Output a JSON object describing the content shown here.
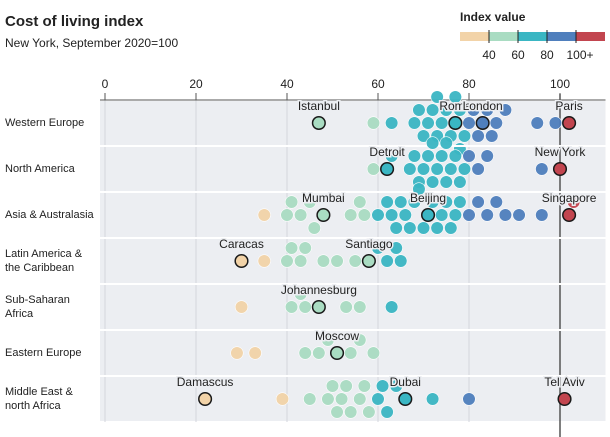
{
  "chart_data": {
    "type": "beeswarm",
    "title": "Cost of living index",
    "subtitle": "New York, September 2020=100",
    "xlim": [
      0,
      110
    ],
    "xticks": [
      0,
      20,
      40,
      60,
      80,
      100
    ],
    "reference_line": 100,
    "legend": {
      "title": "Index value",
      "colors": [
        "#f2d3a8",
        "#a9dcc2",
        "#3ab6c3",
        "#4f7fbd",
        "#c2454f"
      ],
      "ticks": [
        40,
        60,
        80,
        {
          "value": 100,
          "label": "100+"
        }
      ]
    },
    "series": [
      {
        "name": "Western Europe",
        "values": [
          59,
          63,
          68,
          69,
          70,
          71,
          72,
          73,
          73,
          74,
          75,
          76,
          77,
          78,
          78,
          79,
          80,
          81,
          82,
          84,
          85,
          86,
          88,
          95,
          99
        ],
        "highlighted": [
          {
            "city": "Istanbul",
            "value": 47
          },
          {
            "city": "Rome",
            "value": 77
          },
          {
            "city": "London",
            "value": 83
          },
          {
            "city": "Paris",
            "value": 102
          }
        ]
      },
      {
        "name": "North America",
        "values": [
          59,
          63,
          67,
          68,
          69,
          70,
          71,
          72,
          72,
          73,
          74,
          75,
          75,
          76,
          77,
          78,
          79,
          80,
          82,
          84,
          96
        ],
        "highlighted": [
          {
            "city": "Detroit",
            "value": 62
          },
          {
            "city": "New York",
            "value": 100
          }
        ]
      },
      {
        "name": "Asia & Australasia",
        "values": [
          35,
          40,
          41,
          43,
          45,
          46,
          54,
          56,
          57,
          60,
          62,
          63,
          64,
          65,
          66,
          67,
          68,
          69,
          70,
          72,
          73,
          74,
          75,
          76,
          77,
          78,
          80,
          82,
          84,
          86,
          88,
          91,
          96,
          103
        ],
        "highlighted": [
          {
            "city": "Mumbai",
            "value": 48
          },
          {
            "city": "Beijing",
            "value": 71
          },
          {
            "city": "Singapore",
            "value": 102
          }
        ]
      },
      {
        "name": "Latin America &\nthe Caribbean",
        "values": [
          35,
          40,
          41,
          43,
          44,
          48,
          51,
          55,
          60,
          62,
          64,
          65
        ],
        "highlighted": [
          {
            "city": "Caracas",
            "value": 30
          },
          {
            "city": "Santiago",
            "value": 58
          }
        ]
      },
      {
        "name": "Sub-Saharan\nAfrica",
        "values": [
          30,
          41,
          43,
          44,
          53,
          56,
          63
        ],
        "highlighted": [
          {
            "city": "Johannesburg",
            "value": 47
          }
        ]
      },
      {
        "name": "Eastern Europe",
        "values": [
          29,
          33,
          44,
          47,
          49,
          54,
          56,
          59
        ],
        "highlighted": [
          {
            "city": "Moscow",
            "value": 51
          }
        ]
      },
      {
        "name": "Middle East &\nnorth Africa",
        "values": [
          39,
          45,
          49,
          50,
          51,
          52,
          53,
          54,
          56,
          57,
          58,
          60,
          61,
          62,
          64,
          72,
          80
        ],
        "highlighted": [
          {
            "city": "Damascus",
            "value": 22
          },
          {
            "city": "Dubai",
            "value": 66
          },
          {
            "city": "Tel Aviv",
            "value": 101
          }
        ]
      }
    ]
  }
}
